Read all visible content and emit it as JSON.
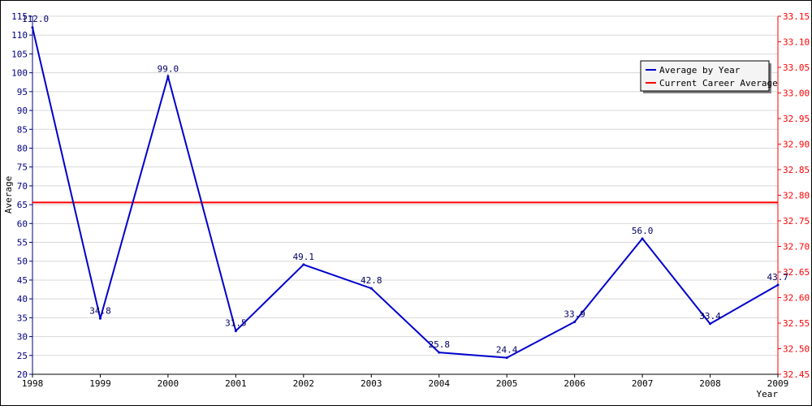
{
  "chart_data": {
    "type": "line",
    "title": "",
    "xlabel": "Year",
    "ylabel": "Average",
    "x": [
      "1998",
      "1999",
      "2000",
      "2001",
      "2002",
      "2003",
      "2004",
      "2005",
      "2006",
      "2007",
      "2008",
      "2009"
    ],
    "series": [
      {
        "name": "Average by Year",
        "axis": "left",
        "color": "#0000cc",
        "values": [
          112.0,
          34.8,
          99.0,
          31.5,
          49.1,
          42.8,
          25.8,
          24.4,
          33.9,
          56.0,
          33.4,
          43.7
        ],
        "labels": [
          "112.0",
          "34.8",
          "99.0",
          "31.5",
          "49.1",
          "42.8",
          "25.8",
          "24.4",
          "33.9",
          "56.0",
          "33.4",
          "43.7"
        ]
      },
      {
        "name": "Current Career Average",
        "axis": "left",
        "color": "#ff0000",
        "constant": 65.6
      }
    ],
    "ylim": [
      20,
      115
    ],
    "yticks": [
      "20",
      "25",
      "30",
      "35",
      "40",
      "45",
      "50",
      "55",
      "60",
      "65",
      "70",
      "75",
      "80",
      "85",
      "90",
      "95",
      "100",
      "105",
      "110",
      "115"
    ],
    "y2lim": [
      32.45,
      33.15
    ],
    "y2ticks": [
      "32.45",
      "32.50",
      "32.55",
      "32.60",
      "32.65",
      "32.70",
      "32.75",
      "32.80",
      "32.85",
      "32.90",
      "32.95",
      "33.00",
      "33.05",
      "33.10",
      "33.15"
    ],
    "grid": true,
    "legend": "top-right",
    "left_axis_color": "#000080",
    "right_axis_color": "#ff0000"
  }
}
